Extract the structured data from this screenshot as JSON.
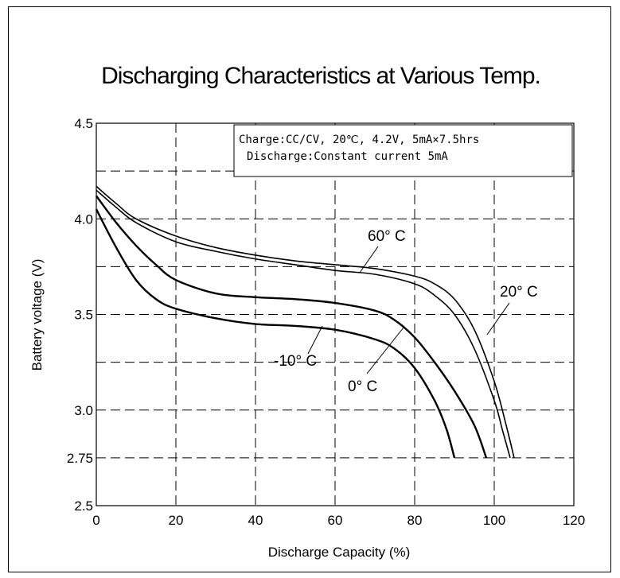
{
  "chart_data": {
    "type": "line",
    "title": "Discharging Characteristics at Various Temp.",
    "xlabel": "Discharge Capacity (%)",
    "ylabel": "Battery voltage (V)",
    "xlim": [
      0,
      120
    ],
    "ylim": [
      2.5,
      4.5
    ],
    "x_ticks": [
      "0",
      "20",
      "40",
      "60",
      "80",
      "100",
      "120"
    ],
    "y_ticks": [
      "2.5",
      "2.75",
      "3.0",
      "3.5",
      "4.0",
      "4.5"
    ],
    "grid": true,
    "annotation": {
      "line1": "Charge:CC/CV, 20℃, 4.2V, 5mA×7.5hrs",
      "line2": "Discharge:Constant current 5mA"
    },
    "series": [
      {
        "name": "60° C",
        "x": [
          0,
          5,
          10,
          20,
          30,
          40,
          50,
          60,
          70,
          80,
          85,
          90,
          95,
          100,
          103,
          105
        ],
        "y": [
          4.17,
          4.08,
          4.0,
          3.91,
          3.85,
          3.81,
          3.78,
          3.76,
          3.74,
          3.7,
          3.66,
          3.58,
          3.42,
          3.15,
          2.92,
          2.75
        ]
      },
      {
        "name": "20° C",
        "x": [
          0,
          5,
          10,
          20,
          30,
          40,
          50,
          60,
          70,
          80,
          85,
          90,
          95,
          100,
          102,
          104
        ],
        "y": [
          4.15,
          4.06,
          3.98,
          3.88,
          3.83,
          3.79,
          3.76,
          3.73,
          3.71,
          3.66,
          3.6,
          3.5,
          3.32,
          3.05,
          2.9,
          2.75
        ]
      },
      {
        "name": "0° C",
        "x": [
          0,
          5,
          10,
          15,
          20,
          30,
          40,
          50,
          60,
          70,
          75,
          80,
          85,
          90,
          95,
          98
        ],
        "y": [
          4.12,
          3.98,
          3.86,
          3.76,
          3.68,
          3.61,
          3.59,
          3.58,
          3.56,
          3.52,
          3.47,
          3.38,
          3.25,
          3.1,
          2.92,
          2.75
        ]
      },
      {
        "name": "-10° C",
        "x": [
          0,
          5,
          10,
          15,
          20,
          30,
          40,
          50,
          60,
          70,
          75,
          80,
          85,
          88,
          90
        ],
        "y": [
          4.05,
          3.85,
          3.68,
          3.58,
          3.53,
          3.48,
          3.45,
          3.44,
          3.42,
          3.37,
          3.32,
          3.22,
          3.05,
          2.9,
          2.75
        ]
      }
    ],
    "curve_labels": [
      {
        "text": "60° C",
        "series": "60° C"
      },
      {
        "text": "20° C",
        "series": "20° C"
      },
      {
        "text": "0° C",
        "series": "0° C"
      },
      {
        "text": "-10° C",
        "series": "-10° C"
      }
    ]
  }
}
